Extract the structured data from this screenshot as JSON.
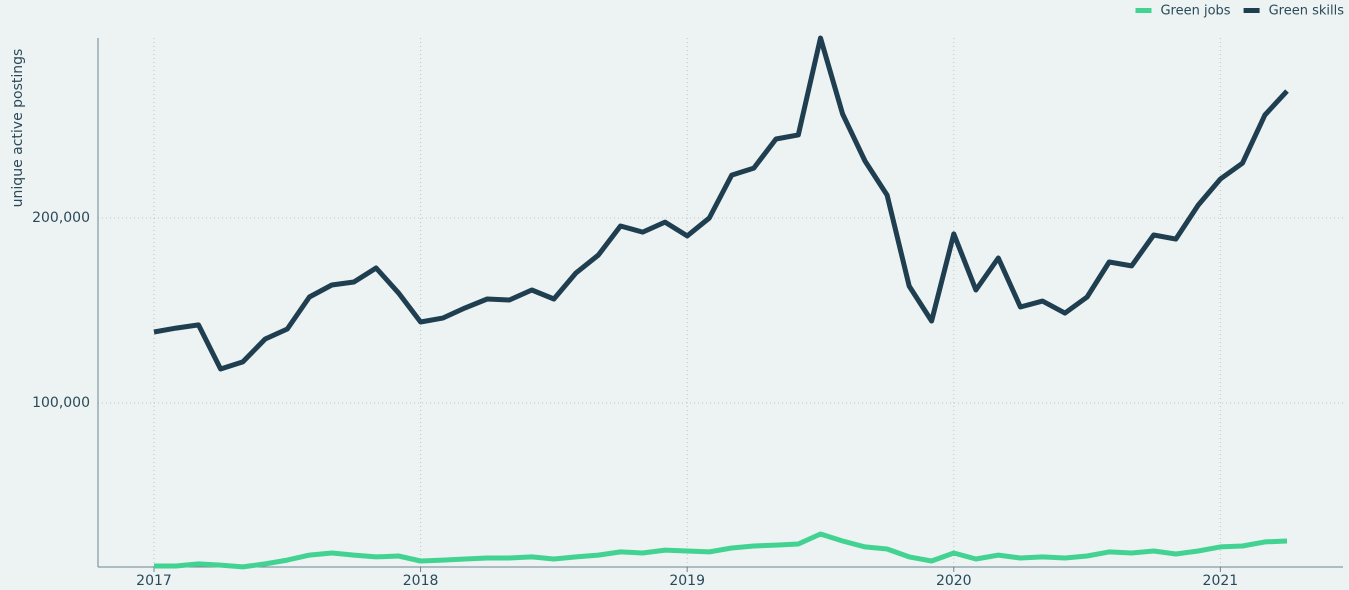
{
  "chart_data": {
    "type": "line",
    "y_label": "unique active postings",
    "x": [
      2017,
      2017.083,
      2017.167,
      2017.25,
      2017.333,
      2017.417,
      2017.5,
      2017.583,
      2017.667,
      2017.75,
      2017.833,
      2017.917,
      2018,
      2018.083,
      2018.167,
      2018.25,
      2018.333,
      2018.417,
      2018.5,
      2018.583,
      2018.667,
      2018.75,
      2018.833,
      2018.917,
      2019,
      2019.083,
      2019.167,
      2019.25,
      2019.333,
      2019.417,
      2019.5,
      2019.583,
      2019.667,
      2019.75,
      2019.833,
      2019.917,
      2020,
      2020.083,
      2020.167,
      2020.25,
      2020.333,
      2020.417,
      2020.5,
      2020.583,
      2020.667,
      2020.75,
      2020.833,
      2020.917,
      2021,
      2021.083,
      2021.167,
      2021.25
    ],
    "series": [
      {
        "name": "Green jobs",
        "color": "#42d392",
        "values": [
          11900,
          11900,
          13000,
          12400,
          11400,
          13000,
          15100,
          17800,
          18900,
          17800,
          16800,
          17300,
          14600,
          15100,
          15700,
          16200,
          16200,
          16800,
          15700,
          16800,
          17800,
          19500,
          18900,
          20500,
          20000,
          19500,
          21600,
          22700,
          23200,
          23800,
          29200,
          25400,
          22200,
          21100,
          16800,
          14600,
          18900,
          15700,
          17800,
          16200,
          16800,
          16200,
          17300,
          19500,
          18900,
          20000,
          18400,
          20000,
          22200,
          22700,
          24900,
          25400
        ]
      },
      {
        "name": "Green skills",
        "color": "#1f3e50",
        "values": [
          138400,
          140500,
          142200,
          118400,
          122200,
          134600,
          140000,
          157300,
          163800,
          165400,
          173000,
          159500,
          143800,
          145900,
          151400,
          156200,
          155700,
          161100,
          156200,
          170300,
          180000,
          195700,
          192400,
          197800,
          190300,
          200000,
          223200,
          227000,
          242700,
          244900,
          297300,
          256200,
          230800,
          212400,
          163200,
          144300,
          191400,
          161100,
          178400,
          151900,
          155100,
          148600,
          157300,
          176200,
          174100,
          190800,
          188600,
          207000,
          221100,
          229700,
          255700,
          268600
        ]
      }
    ],
    "xlim": [
      2016.79,
      2021.46
    ],
    "xticks": [
      2017,
      2018,
      2019,
      2020,
      2021
    ],
    "ylim": [
      11350,
      297300
    ],
    "yticks": [
      {
        "value": 100000,
        "label": "100,000"
      },
      {
        "value": 200000,
        "label": "200,000"
      }
    ],
    "grid": true,
    "legend": "top-right"
  }
}
